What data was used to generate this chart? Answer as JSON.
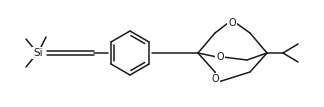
{
  "bg_color": "#ffffff",
  "line_color": "#1a1a1a",
  "line_width": 1.1,
  "font_size": 7.0,
  "figsize": [
    3.24,
    1.07
  ],
  "dpi": 100,
  "xlim": [
    0,
    324
  ],
  "ylim": [
    0,
    107
  ]
}
